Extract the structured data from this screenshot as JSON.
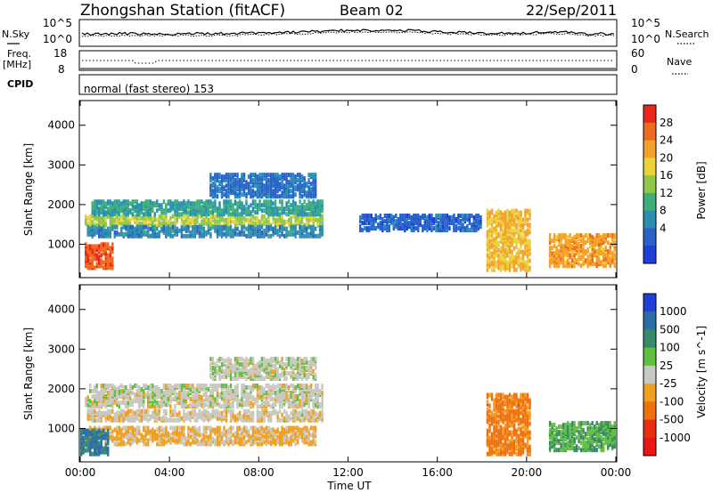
{
  "header": {
    "title": "Zhongshan Station (fitACF)",
    "beam": "Beam 02",
    "date": "22/Sep/2011"
  },
  "noise_panel": {
    "left_label": "N.Sky",
    "right_label": "N.Search",
    "left_ticks": [
      "10^5",
      "10^0"
    ],
    "right_ticks": [
      "10^5",
      "10^0"
    ]
  },
  "freq_panel": {
    "left_label_1": "Freq.",
    "left_label_2": "[MHz]",
    "right_label": "Nave",
    "left_ticks": [
      "18",
      "8"
    ],
    "right_ticks": [
      "60",
      "0"
    ]
  },
  "cpid_panel": {
    "label": "CPID",
    "text": "normal (fast stereo) 153"
  },
  "axes": {
    "y_label": "Slant Range [km]",
    "x_label": "Time UT",
    "y_ticks": [
      "1000",
      "2000",
      "3000",
      "4000"
    ],
    "x_ticks": [
      "00:00",
      "04:00",
      "08:00",
      "12:00",
      "16:00",
      "20:00",
      "00:00"
    ]
  },
  "colorbars": {
    "power": {
      "label": "Power [dB]",
      "ticks": [
        "4",
        "8",
        "12",
        "16",
        "20",
        "24",
        "28"
      ],
      "colors": [
        "#1f3fd6",
        "#2a62c8",
        "#2a8fb0",
        "#3fae7a",
        "#8ec84a",
        "#e8d43a",
        "#f2a22a",
        "#ee6a1e",
        "#e8261a"
      ]
    },
    "velocity": {
      "label": "Velocity [m s^-1]",
      "ticks": [
        "1000",
        "500",
        "100",
        "25",
        "-25",
        "-100",
        "-500",
        "-1000"
      ],
      "colors": [
        "#1f3fd6",
        "#2a6ea8",
        "#3a8a6a",
        "#60c040",
        "#c8c8c0",
        "#f0a020",
        "#f07010",
        "#e83010",
        "#e81818"
      ]
    }
  },
  "chart_data": [
    {
      "type": "heatmap",
      "title": "Power",
      "xlabel": "Time UT",
      "ylabel": "Slant Range [km]",
      "xlim": [
        0,
        24
      ],
      "ylim": [
        180,
        4600
      ],
      "zlabel": "Power [dB]",
      "zlim": [
        0,
        30
      ],
      "bands": [
        {
          "t": [
            0.2,
            10.8
          ],
          "range": [
            1420,
            1680
          ],
          "z": 16
        },
        {
          "t": [
            0.5,
            10.8
          ],
          "range": [
            1700,
            2050
          ],
          "z": 10
        },
        {
          "t": [
            0.3,
            10.8
          ],
          "range": [
            1150,
            1380
          ],
          "z": 8
        },
        {
          "t": [
            0.2,
            1.5
          ],
          "range": [
            350,
            950
          ],
          "z": 26
        },
        {
          "t": [
            5.8,
            10.5
          ],
          "range": [
            2150,
            2700
          ],
          "z": 6
        },
        {
          "t": [
            18.2,
            20.2
          ],
          "range": [
            300,
            1800
          ],
          "z": 20
        },
        {
          "t": [
            21.0,
            24.0
          ],
          "range": [
            400,
            1200
          ],
          "z": 22
        },
        {
          "t": [
            12.5,
            18.0
          ],
          "range": [
            1300,
            1700
          ],
          "z": 5
        }
      ]
    },
    {
      "type": "heatmap",
      "title": "Velocity",
      "xlabel": "Time UT",
      "ylabel": "Slant Range [km]",
      "xlim": [
        0,
        24
      ],
      "ylim": [
        180,
        4600
      ],
      "zlabel": "Velocity [m s^-1]",
      "zlim": [
        -1000,
        1000
      ],
      "bands": [
        {
          "t": [
            0.2,
            10.8
          ],
          "range": [
            1500,
            1750
          ],
          "z": 0
        },
        {
          "t": [
            0.4,
            10.8
          ],
          "range": [
            1750,
            2050
          ],
          "z": 10
        },
        {
          "t": [
            0.3,
            10.8
          ],
          "range": [
            1150,
            1400
          ],
          "z": -40
        },
        {
          "t": [
            0.2,
            10.5
          ],
          "range": [
            550,
            1000
          ],
          "z": -150
        },
        {
          "t": [
            0.0,
            1.3
          ],
          "range": [
            300,
            900
          ],
          "z": 600
        },
        {
          "t": [
            5.8,
            10.5
          ],
          "range": [
            2200,
            2700
          ],
          "z": 20
        },
        {
          "t": [
            18.2,
            20.2
          ],
          "range": [
            300,
            1800
          ],
          "z": -400
        },
        {
          "t": [
            21.0,
            24.0
          ],
          "range": [
            400,
            1100
          ],
          "z": 300
        }
      ]
    }
  ]
}
